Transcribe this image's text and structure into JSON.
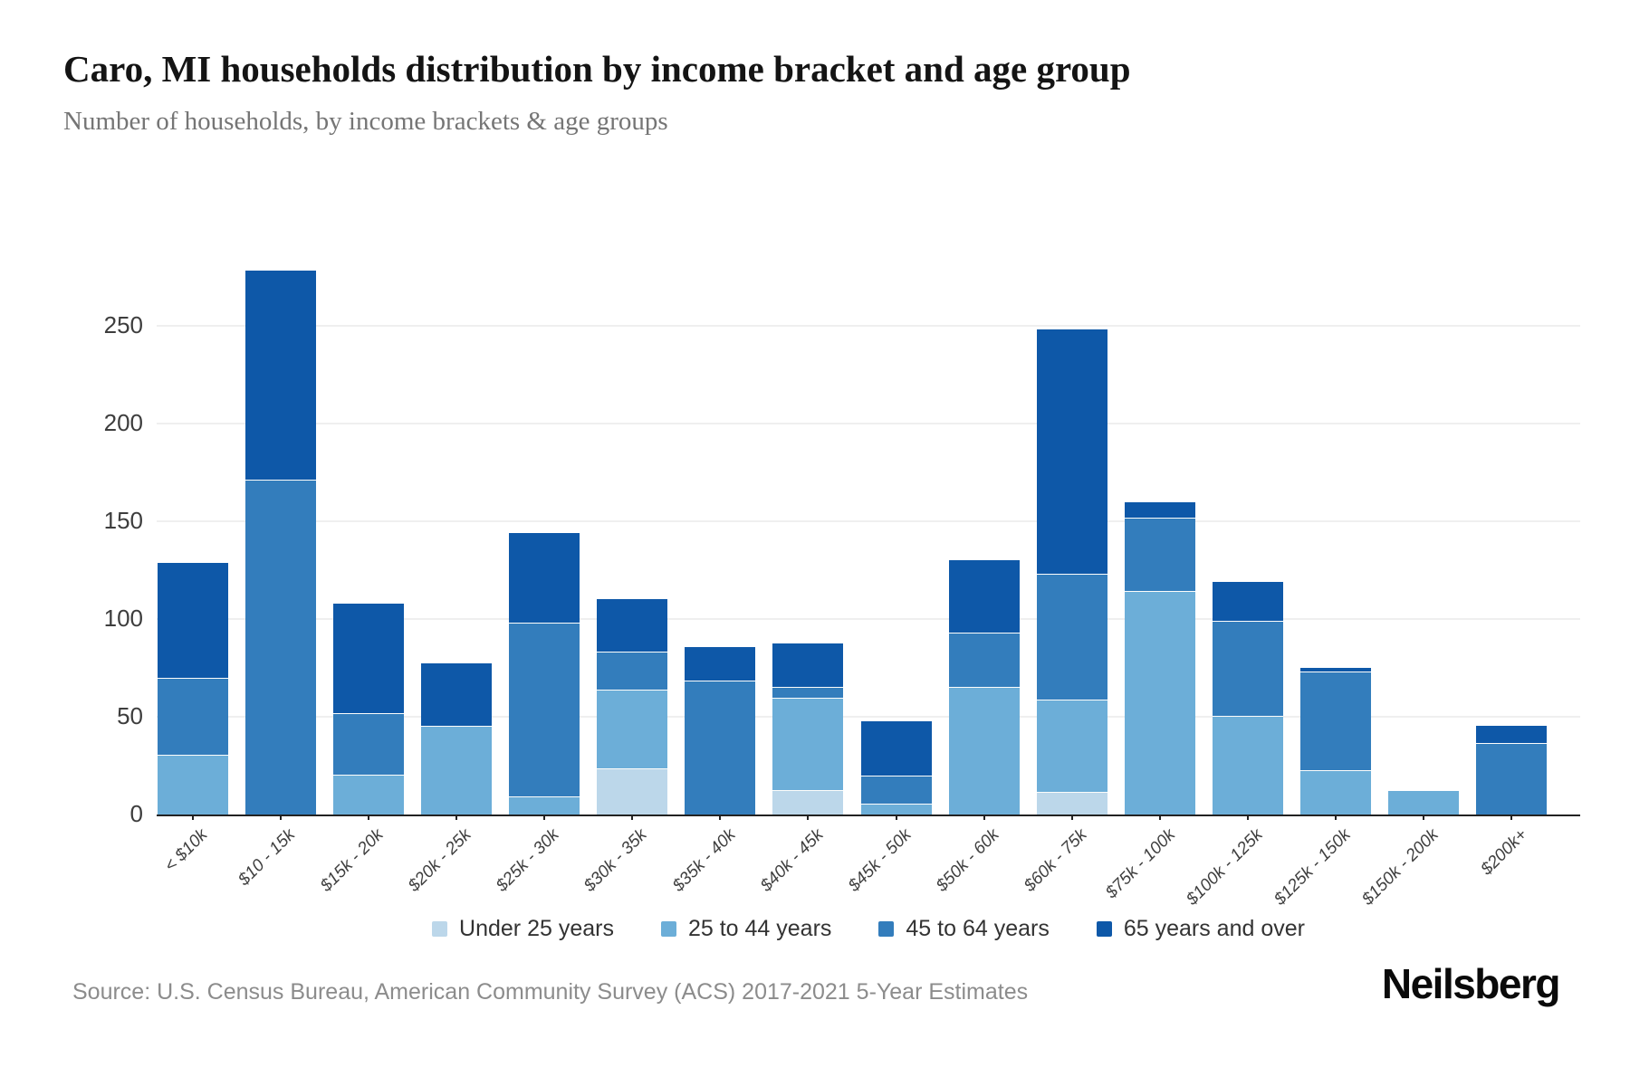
{
  "title": "Caro, MI households distribution by income bracket and age group",
  "subtitle": "Number of households, by income brackets & age groups",
  "source": "Source: U.S. Census Bureau, American Community Survey (ACS) 2017-2021 5-Year Estimates",
  "logo": "Neilsberg",
  "chart_data": {
    "type": "bar",
    "stacked": true,
    "title": "Caro, MI households distribution by income bracket and age group",
    "xlabel": "",
    "ylabel": "Number of households",
    "ylim": [
      0,
      305
    ],
    "yticks": [
      0,
      50,
      100,
      150,
      200,
      250
    ],
    "grid": true,
    "legend_position": "bottom",
    "categories": [
      "< $10k",
      "$10 - 15k",
      "$15k - 20k",
      "$20k - 25k",
      "$25k - 30k",
      "$30k - 35k",
      "$35k - 40k",
      "$40k - 45k",
      "$45k - 50k",
      "$50k - 60k",
      "$60k - 75k",
      "$75k - 100k",
      "$100k - 125k",
      "$125k - 150k",
      "$150k - 200k",
      "$200k+"
    ],
    "series": [
      {
        "name": "Under 25 years",
        "color": "#bcd7ea",
        "values": [
          0,
          0,
          0,
          0,
          0,
          23,
          0,
          12,
          0,
          0,
          11,
          0,
          0,
          0,
          0,
          0
        ]
      },
      {
        "name": "25 to 44 years",
        "color": "#6caed8",
        "values": [
          30,
          0,
          20,
          45,
          9,
          40,
          0,
          47,
          5,
          65,
          47,
          114,
          50,
          22,
          12,
          0
        ]
      },
      {
        "name": "45 to 64 years",
        "color": "#337dbc",
        "values": [
          39,
          171,
          31,
          0,
          88,
          19,
          68,
          5,
          14,
          27,
          64,
          37,
          48,
          50,
          0,
          36
        ]
      },
      {
        "name": "65 years and over",
        "color": "#0e58a8",
        "values": [
          59,
          107,
          56,
          32,
          46,
          27,
          17,
          22,
          28,
          37,
          125,
          8,
          20,
          2,
          0,
          9
        ]
      }
    ],
    "totals": [
      128,
      278,
      107,
      77,
      143,
      109,
      85,
      86,
      47,
      129,
      247,
      159,
      118,
      74,
      12,
      45
    ]
  }
}
